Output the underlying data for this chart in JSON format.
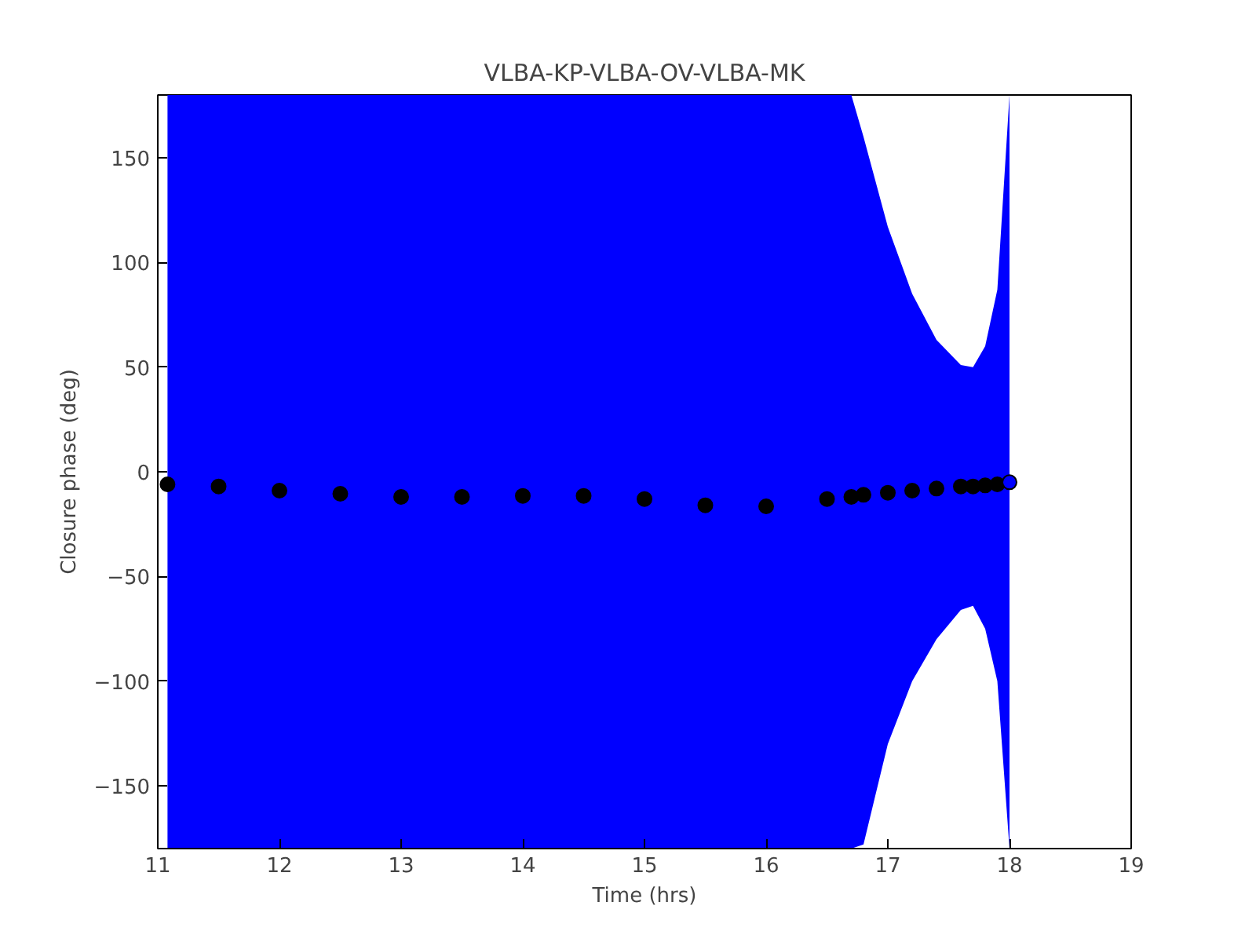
{
  "chart_data": {
    "type": "scatter",
    "title": "VLBA-KP-VLBA-OV-VLBA-MK",
    "xlabel": "Time (hrs)",
    "ylabel": "Closure phase (deg)",
    "xlim": [
      11,
      19
    ],
    "xticks": [
      11,
      12,
      13,
      14,
      15,
      16,
      17,
      18,
      19
    ],
    "ylim": [
      -180,
      180
    ],
    "yticks": [
      -150,
      -100,
      -50,
      0,
      50,
      100,
      150
    ],
    "grid": false,
    "marker": "circle",
    "series": [
      {
        "color": "#0000ff",
        "colors": [
          "#000000",
          "#000000",
          "#000000",
          "#000000",
          "#000000",
          "#000000",
          "#000000",
          "#000000",
          "#000000",
          "#000000",
          "#000000",
          "#000000",
          "#000000",
          "#000000",
          "#000000",
          "#000000",
          "#000000",
          "#000000",
          "#000000",
          "#000000",
          "#000000",
          "#0000ff"
        ],
        "x": [
          11.08,
          11.5,
          12,
          12.5,
          13,
          13.5,
          14,
          14.5,
          15,
          15.5,
          16,
          16.5,
          16.7,
          16.8,
          17.0,
          17.2,
          17.4,
          17.6,
          17.7,
          17.8,
          17.9,
          18.0
        ],
        "values": [
          -6,
          -7,
          -9,
          -10.5,
          -12,
          -12,
          -11.5,
          -11.5,
          -13,
          -16,
          -16.5,
          -13,
          -12,
          -11,
          -10,
          -9,
          -8,
          -7,
          -7,
          -6.5,
          -6,
          -5
        ],
        "upper": [
          180,
          180,
          180,
          180,
          180,
          180,
          180,
          180,
          180,
          180,
          180,
          180,
          180,
          160,
          117,
          85,
          63,
          51,
          50,
          60,
          87,
          180
        ],
        "lower": [
          -180,
          -180,
          -180,
          -180,
          -180,
          -180,
          -180,
          -180,
          -180,
          -180,
          -180,
          -180,
          -180,
          -178,
          -130,
          -100,
          -80,
          -66,
          -64,
          -75,
          -100,
          -180
        ]
      }
    ]
  }
}
